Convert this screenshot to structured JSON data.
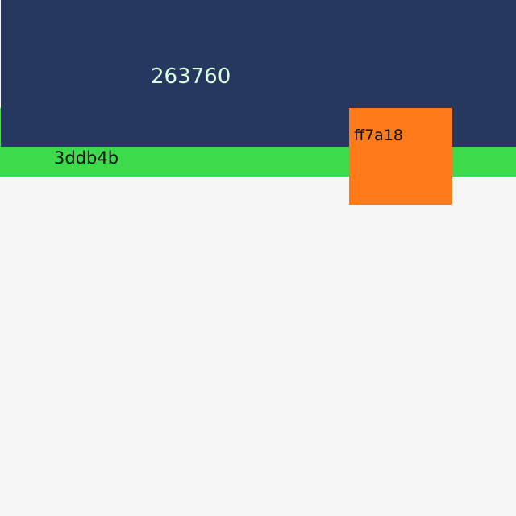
{
  "blocks": {
    "navy": {
      "label": "263760",
      "color": "#263760"
    },
    "green": {
      "label": "3ddb4b",
      "color": "#3ddb4b"
    },
    "orange": {
      "label": "ff7a18",
      "color": "#ff7a18"
    }
  },
  "background_color": "#f6f6f6"
}
